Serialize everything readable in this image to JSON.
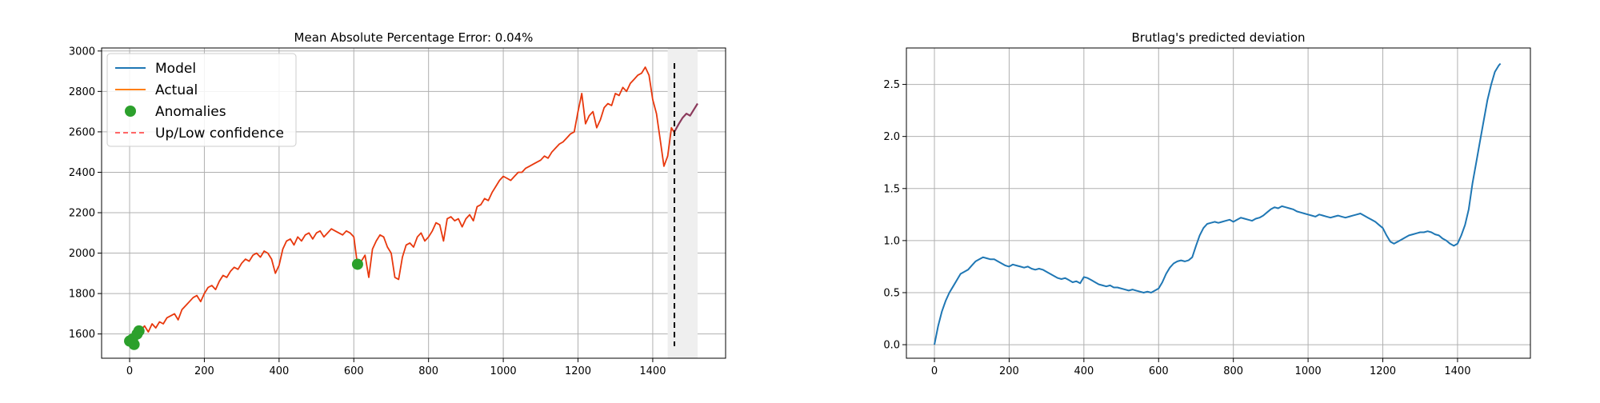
{
  "chart_data": [
    {
      "type": "line",
      "title": "Mean Absolute Percentage Error: 0.04%",
      "xlim": [
        -75,
        1595
      ],
      "ylim": [
        1480,
        3015
      ],
      "xticks": [
        0,
        200,
        400,
        600,
        800,
        1000,
        1200,
        1400
      ],
      "yticks": [
        1600,
        1800,
        2000,
        2200,
        2400,
        2600,
        2800,
        3000
      ],
      "grid": true,
      "legend": {
        "position": "top-left",
        "entries": [
          "Model",
          "Actual",
          "Anomalies",
          "Up/Low confidence"
        ]
      },
      "forecast_region": [
        1440,
        1520
      ],
      "split_line_x": 1458,
      "split_line_y_range": [
        1540,
        2940
      ],
      "colors": {
        "model": "#1f77b4",
        "actual": "#ff7f0e",
        "combined": "#e8380d",
        "anomalies": "#2ca02c",
        "confidence": "#ff6666",
        "forecast": "#8b3a5c",
        "region": "#efefef"
      },
      "series": [
        {
          "name": "Actual",
          "x": [
            0,
            10,
            20,
            30,
            40,
            50,
            60,
            70,
            80,
            90,
            100,
            110,
            120,
            130,
            140,
            150,
            160,
            170,
            180,
            190,
            200,
            210,
            220,
            230,
            240,
            250,
            260,
            270,
            280,
            290,
            300,
            310,
            320,
            330,
            340,
            350,
            360,
            370,
            380,
            390,
            400,
            410,
            420,
            430,
            440,
            450,
            460,
            470,
            480,
            490,
            500,
            510,
            520,
            530,
            540,
            550,
            560,
            570,
            580,
            590,
            600,
            610,
            620,
            630,
            640,
            650,
            660,
            670,
            680,
            690,
            700,
            710,
            720,
            730,
            740,
            750,
            760,
            770,
            780,
            790,
            800,
            810,
            820,
            830,
            840,
            850,
            860,
            870,
            880,
            890,
            900,
            910,
            920,
            930,
            940,
            950,
            960,
            970,
            980,
            990,
            1000,
            1010,
            1020,
            1030,
            1040,
            1050,
            1060,
            1070,
            1080,
            1090,
            1100,
            1110,
            1120,
            1130,
            1140,
            1150,
            1160,
            1170,
            1180,
            1190,
            1200,
            1210,
            1220,
            1230,
            1240,
            1250,
            1260,
            1270,
            1280,
            1290,
            1300,
            1310,
            1320,
            1330,
            1340,
            1350,
            1360,
            1370,
            1380,
            1390,
            1400,
            1410,
            1420,
            1430,
            1440,
            1450,
            1460
          ],
          "values": [
            1560,
            1580,
            1600,
            1620,
            1640,
            1610,
            1650,
            1630,
            1660,
            1650,
            1680,
            1690,
            1700,
            1670,
            1720,
            1740,
            1760,
            1780,
            1790,
            1760,
            1800,
            1830,
            1840,
            1820,
            1860,
            1890,
            1880,
            1910,
            1930,
            1920,
            1950,
            1970,
            1960,
            1990,
            2000,
            1980,
            2010,
            2000,
            1970,
            1900,
            1940,
            2020,
            2060,
            2070,
            2040,
            2080,
            2060,
            2090,
            2100,
            2070,
            2100,
            2110,
            2080,
            2100,
            2120,
            2110,
            2100,
            2090,
            2110,
            2100,
            2080,
            1940,
            1960,
            1990,
            1880,
            2020,
            2060,
            2090,
            2080,
            2030,
            2000,
            1880,
            1870,
            1980,
            2040,
            2050,
            2030,
            2080,
            2100,
            2060,
            2080,
            2110,
            2150,
            2140,
            2060,
            2170,
            2180,
            2160,
            2170,
            2130,
            2170,
            2190,
            2160,
            2230,
            2240,
            2270,
            2260,
            2300,
            2330,
            2360,
            2380,
            2370,
            2360,
            2380,
            2400,
            2400,
            2420,
            2430,
            2440,
            2450,
            2460,
            2480,
            2470,
            2500,
            2520,
            2540,
            2550,
            2570,
            2590,
            2600,
            2700,
            2790,
            2640,
            2680,
            2700,
            2620,
            2660,
            2720,
            2740,
            2730,
            2790,
            2780,
            2820,
            2800,
            2840,
            2860,
            2880,
            2890,
            2920,
            2880,
            2760,
            2690,
            2560,
            2430,
            2480,
            2620,
            2590
          ]
        },
        {
          "name": "Model",
          "x": [
            1458,
            1470,
            1480,
            1490,
            1500,
            1510,
            1520
          ],
          "values": [
            2600,
            2640,
            2670,
            2690,
            2680,
            2710,
            2740
          ]
        },
        {
          "name": "Anomalies",
          "x": [
            0,
            8,
            12,
            20,
            25,
            610
          ],
          "values": [
            1565,
            1575,
            1548,
            1600,
            1615,
            1945
          ]
        }
      ]
    },
    {
      "type": "line",
      "title": "Brutlag's predicted deviation",
      "xlim": [
        -75,
        1595
      ],
      "ylim": [
        -0.13,
        2.85
      ],
      "xticks": [
        0,
        200,
        400,
        600,
        800,
        1000,
        1200,
        1400
      ],
      "yticks": [
        0.0,
        0.5,
        1.0,
        1.5,
        2.0,
        2.5
      ],
      "grid": true,
      "colors": {
        "line": "#1f77b4"
      },
      "series": [
        {
          "x": [
            0,
            10,
            20,
            30,
            40,
            50,
            60,
            70,
            80,
            90,
            100,
            110,
            120,
            130,
            140,
            150,
            160,
            170,
            180,
            190,
            200,
            210,
            220,
            230,
            240,
            250,
            260,
            270,
            280,
            290,
            300,
            310,
            320,
            330,
            340,
            350,
            360,
            370,
            380,
            390,
            400,
            410,
            420,
            430,
            440,
            450,
            460,
            470,
            480,
            490,
            500,
            510,
            520,
            530,
            540,
            550,
            560,
            570,
            580,
            590,
            600,
            610,
            620,
            630,
            640,
            650,
            660,
            670,
            680,
            690,
            700,
            710,
            720,
            730,
            740,
            750,
            760,
            770,
            780,
            790,
            800,
            810,
            820,
            830,
            840,
            850,
            860,
            870,
            880,
            890,
            900,
            910,
            920,
            930,
            940,
            950,
            960,
            970,
            980,
            990,
            1000,
            1010,
            1020,
            1030,
            1040,
            1050,
            1060,
            1070,
            1080,
            1090,
            1100,
            1110,
            1120,
            1130,
            1140,
            1150,
            1160,
            1170,
            1180,
            1190,
            1200,
            1210,
            1220,
            1230,
            1240,
            1250,
            1260,
            1270,
            1280,
            1290,
            1300,
            1310,
            1320,
            1330,
            1340,
            1350,
            1360,
            1370,
            1380,
            1390,
            1400,
            1410,
            1420,
            1430,
            1440,
            1450,
            1460,
            1470,
            1480,
            1490,
            1500,
            1510,
            1515
          ],
          "values": [
            0.0,
            0.18,
            0.32,
            0.42,
            0.5,
            0.56,
            0.62,
            0.68,
            0.7,
            0.72,
            0.76,
            0.8,
            0.82,
            0.84,
            0.83,
            0.82,
            0.82,
            0.8,
            0.78,
            0.76,
            0.75,
            0.77,
            0.76,
            0.75,
            0.74,
            0.75,
            0.73,
            0.72,
            0.73,
            0.72,
            0.7,
            0.68,
            0.66,
            0.64,
            0.63,
            0.64,
            0.62,
            0.6,
            0.61,
            0.59,
            0.65,
            0.64,
            0.62,
            0.6,
            0.58,
            0.57,
            0.56,
            0.57,
            0.55,
            0.55,
            0.54,
            0.53,
            0.52,
            0.53,
            0.52,
            0.51,
            0.5,
            0.51,
            0.5,
            0.52,
            0.54,
            0.6,
            0.68,
            0.74,
            0.78,
            0.8,
            0.81,
            0.8,
            0.81,
            0.84,
            0.95,
            1.05,
            1.12,
            1.16,
            1.17,
            1.18,
            1.17,
            1.18,
            1.19,
            1.2,
            1.18,
            1.2,
            1.22,
            1.21,
            1.2,
            1.19,
            1.21,
            1.22,
            1.24,
            1.27,
            1.3,
            1.32,
            1.31,
            1.33,
            1.32,
            1.31,
            1.3,
            1.28,
            1.27,
            1.26,
            1.25,
            1.24,
            1.23,
            1.25,
            1.24,
            1.23,
            1.22,
            1.23,
            1.24,
            1.23,
            1.22,
            1.23,
            1.24,
            1.25,
            1.26,
            1.24,
            1.22,
            1.2,
            1.18,
            1.15,
            1.12,
            1.05,
            0.99,
            0.97,
            0.99,
            1.01,
            1.03,
            1.05,
            1.06,
            1.07,
            1.08,
            1.08,
            1.09,
            1.08,
            1.06,
            1.05,
            1.02,
            1.0,
            0.97,
            0.95,
            0.97,
            1.05,
            1.15,
            1.3,
            1.55,
            1.75,
            1.95,
            2.15,
            2.35,
            2.5,
            2.62,
            2.68,
            2.7
          ]
        }
      ]
    }
  ]
}
